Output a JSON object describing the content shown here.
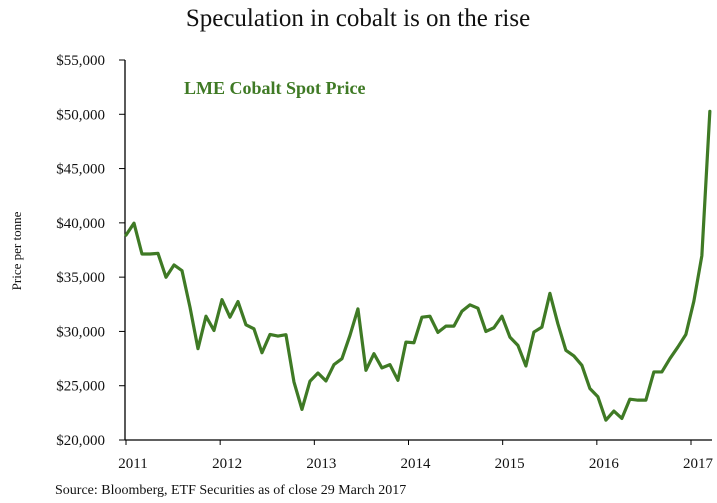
{
  "chart_data": {
    "type": "line",
    "title": "Speculation in cobalt is on the rise",
    "ylabel": "Price per tonne",
    "xlabel": "",
    "source": "Source: Bloomberg, ETF Securities as of close 29 March 2017",
    "ylim": [
      20000,
      55000
    ],
    "xlim": [
      2011,
      2017
    ],
    "grid": false,
    "y_ticks": [
      20000,
      25000,
      30000,
      35000,
      40000,
      45000,
      50000,
      55000
    ],
    "y_tick_labels": [
      "$20,000",
      "$25,000",
      "$30,000",
      "$35,000",
      "$40,000",
      "$45,000",
      "$50,000",
      "$55,000"
    ],
    "x_ticks": [
      2011,
      2012,
      2013,
      2014,
      2015,
      2016,
      2017
    ],
    "x_tick_labels": [
      "2011",
      "2012",
      "2013",
      "2014",
      "2015",
      "2016",
      "2017"
    ],
    "series": [
      {
        "name": "LME Cobalt Spot Price",
        "color": "#3f7a25",
        "label_placement": "top-left",
        "dates": [
          "2011-01",
          "2011-02",
          "2011-03",
          "2011-04",
          "2011-05",
          "2011-06",
          "2011-07",
          "2011-08",
          "2011-09",
          "2011-10",
          "2011-11",
          "2011-12",
          "2012-01",
          "2012-02",
          "2012-03",
          "2012-04",
          "2012-05",
          "2012-06",
          "2012-07",
          "2012-08",
          "2012-09",
          "2012-10",
          "2012-11",
          "2012-12",
          "2013-01",
          "2013-02",
          "2013-03",
          "2013-04",
          "2013-05",
          "2013-06",
          "2013-07",
          "2013-08",
          "2013-09",
          "2013-10",
          "2013-11",
          "2013-12",
          "2014-01",
          "2014-02",
          "2014-03",
          "2014-04",
          "2014-05",
          "2014-06",
          "2014-07",
          "2014-08",
          "2014-09",
          "2014-10",
          "2014-11",
          "2014-12",
          "2015-01",
          "2015-02",
          "2015-03",
          "2015-04",
          "2015-05",
          "2015-06",
          "2015-07",
          "2015-08",
          "2015-09",
          "2015-10",
          "2015-11",
          "2015-12",
          "2016-01",
          "2016-02",
          "2016-03",
          "2016-04",
          "2016-05",
          "2016-06",
          "2016-07",
          "2016-08",
          "2016-09",
          "2016-10",
          "2016-11",
          "2016-12",
          "2017-01",
          "2017-02"
        ],
        "values": [
          38870,
          39970,
          37130,
          37130,
          37190,
          34990,
          36120,
          35600,
          32230,
          28410,
          31400,
          30090,
          32930,
          31310,
          32750,
          30610,
          30240,
          28040,
          29720,
          29570,
          29700,
          25350,
          22820,
          25410,
          26170,
          25440,
          26940,
          27490,
          29630,
          32080,
          26420,
          27950,
          26640,
          26940,
          25500,
          29020,
          28960,
          31310,
          31400,
          29910,
          30490,
          30490,
          31860,
          32450,
          32140,
          30000,
          30340,
          31400,
          29480,
          28720,
          26820,
          29940,
          30400,
          33510,
          30700,
          28260,
          27740,
          26880,
          24740,
          23980,
          21830,
          22660,
          21990,
          23760,
          23670,
          23670,
          26270,
          26270,
          27490,
          28560,
          29720,
          32780,
          36970,
          50270
        ]
      }
    ]
  }
}
